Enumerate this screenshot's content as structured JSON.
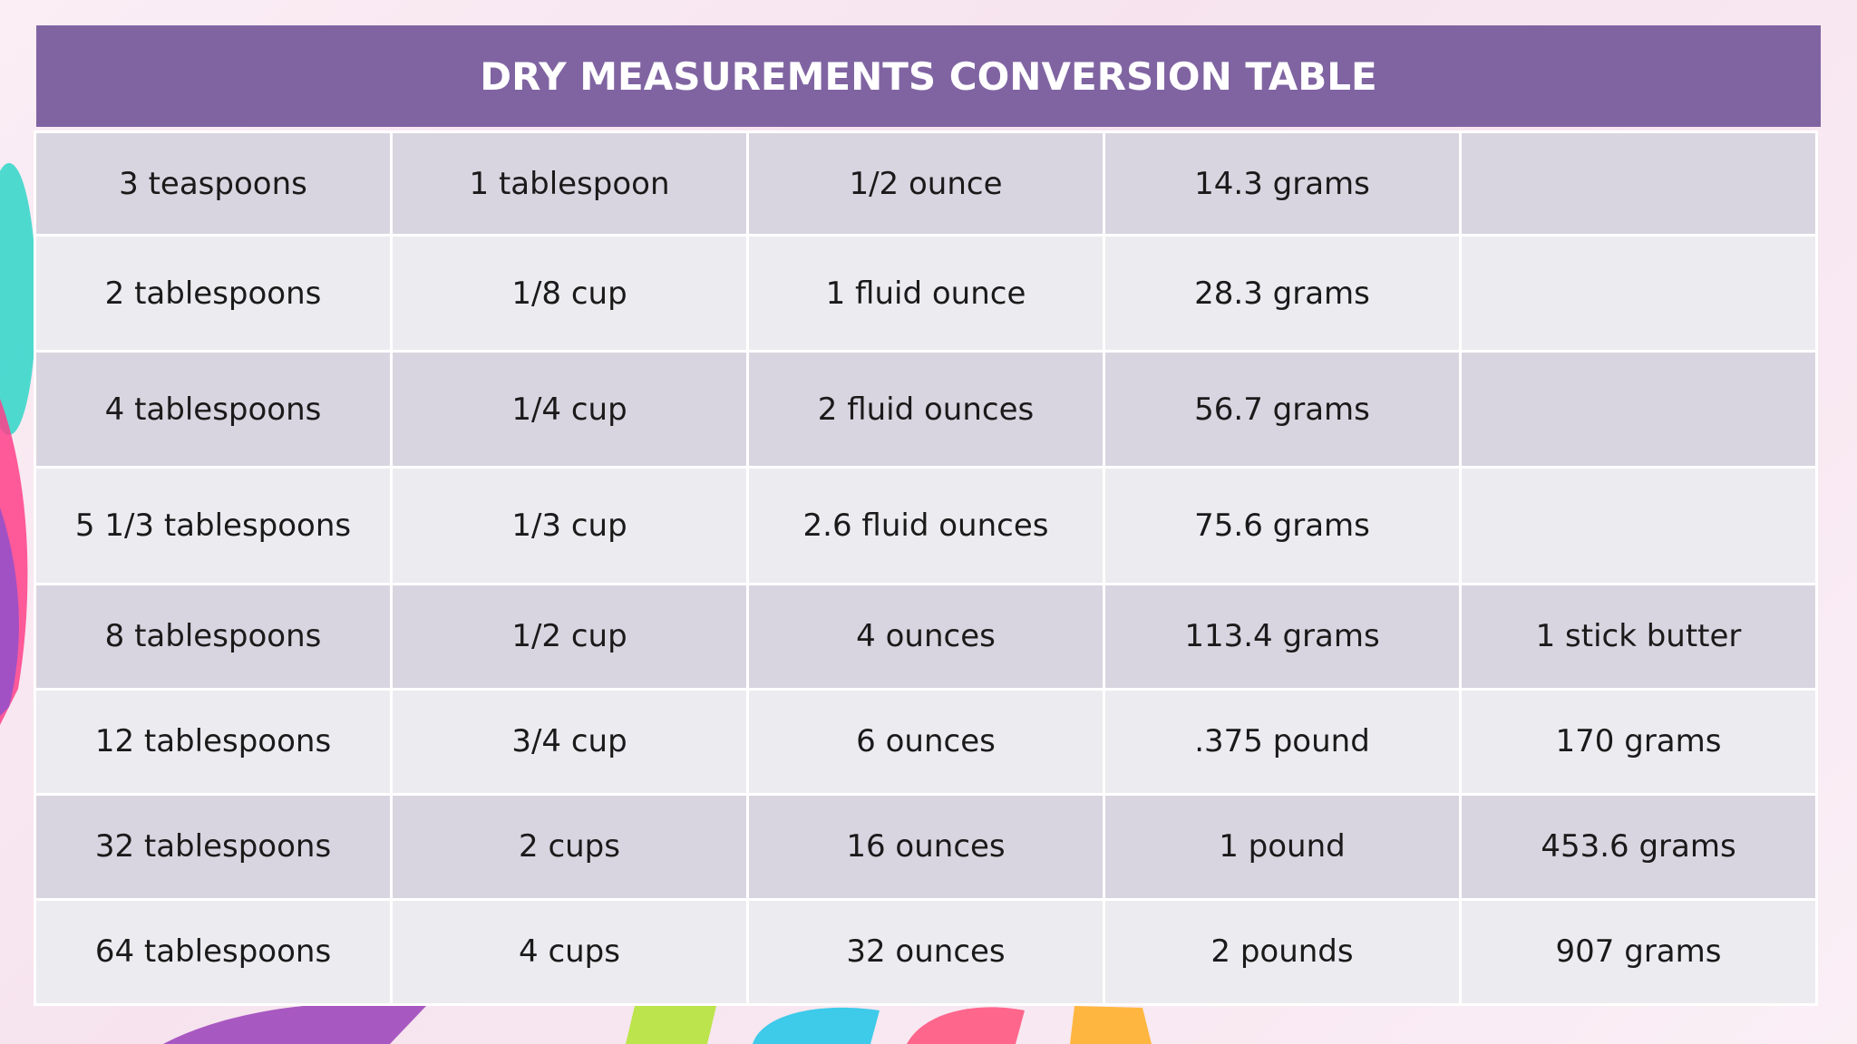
{
  "title": "DRY MEASUREMENTS CONVERSION TABLE",
  "colors": {
    "title_bar": "#8064a2",
    "row_dark": "#d9d5e0",
    "row_light": "#ecebf0",
    "background": "#f8e8f1"
  },
  "rows": [
    [
      "3 teaspoons",
      "1 tablespoon",
      "1/2 ounce",
      "14.3 grams",
      ""
    ],
    [
      "2 tablespoons",
      "1/8 cup",
      "1 fluid ounce",
      "28.3 grams",
      ""
    ],
    [
      "4 tablespoons",
      "1/4 cup",
      "2 fluid ounces",
      "56.7 grams",
      ""
    ],
    [
      "5 1/3 tablespoons",
      "1/3 cup",
      "2.6 fluid ounces",
      "75.6 grams",
      ""
    ],
    [
      "8 tablespoons",
      "1/2 cup",
      "4 ounces",
      "113.4 grams",
      "1 stick butter"
    ],
    [
      "12 tablespoons",
      "3/4 cup",
      "6 ounces",
      ".375 pound",
      "170 grams"
    ],
    [
      "32 tablespoons",
      "2 cups",
      "16 ounces",
      "1 pound",
      "453.6 grams"
    ],
    [
      "64 tablespoons",
      "4 cups",
      "32 ounces",
      "2 pounds",
      "907 grams"
    ]
  ]
}
